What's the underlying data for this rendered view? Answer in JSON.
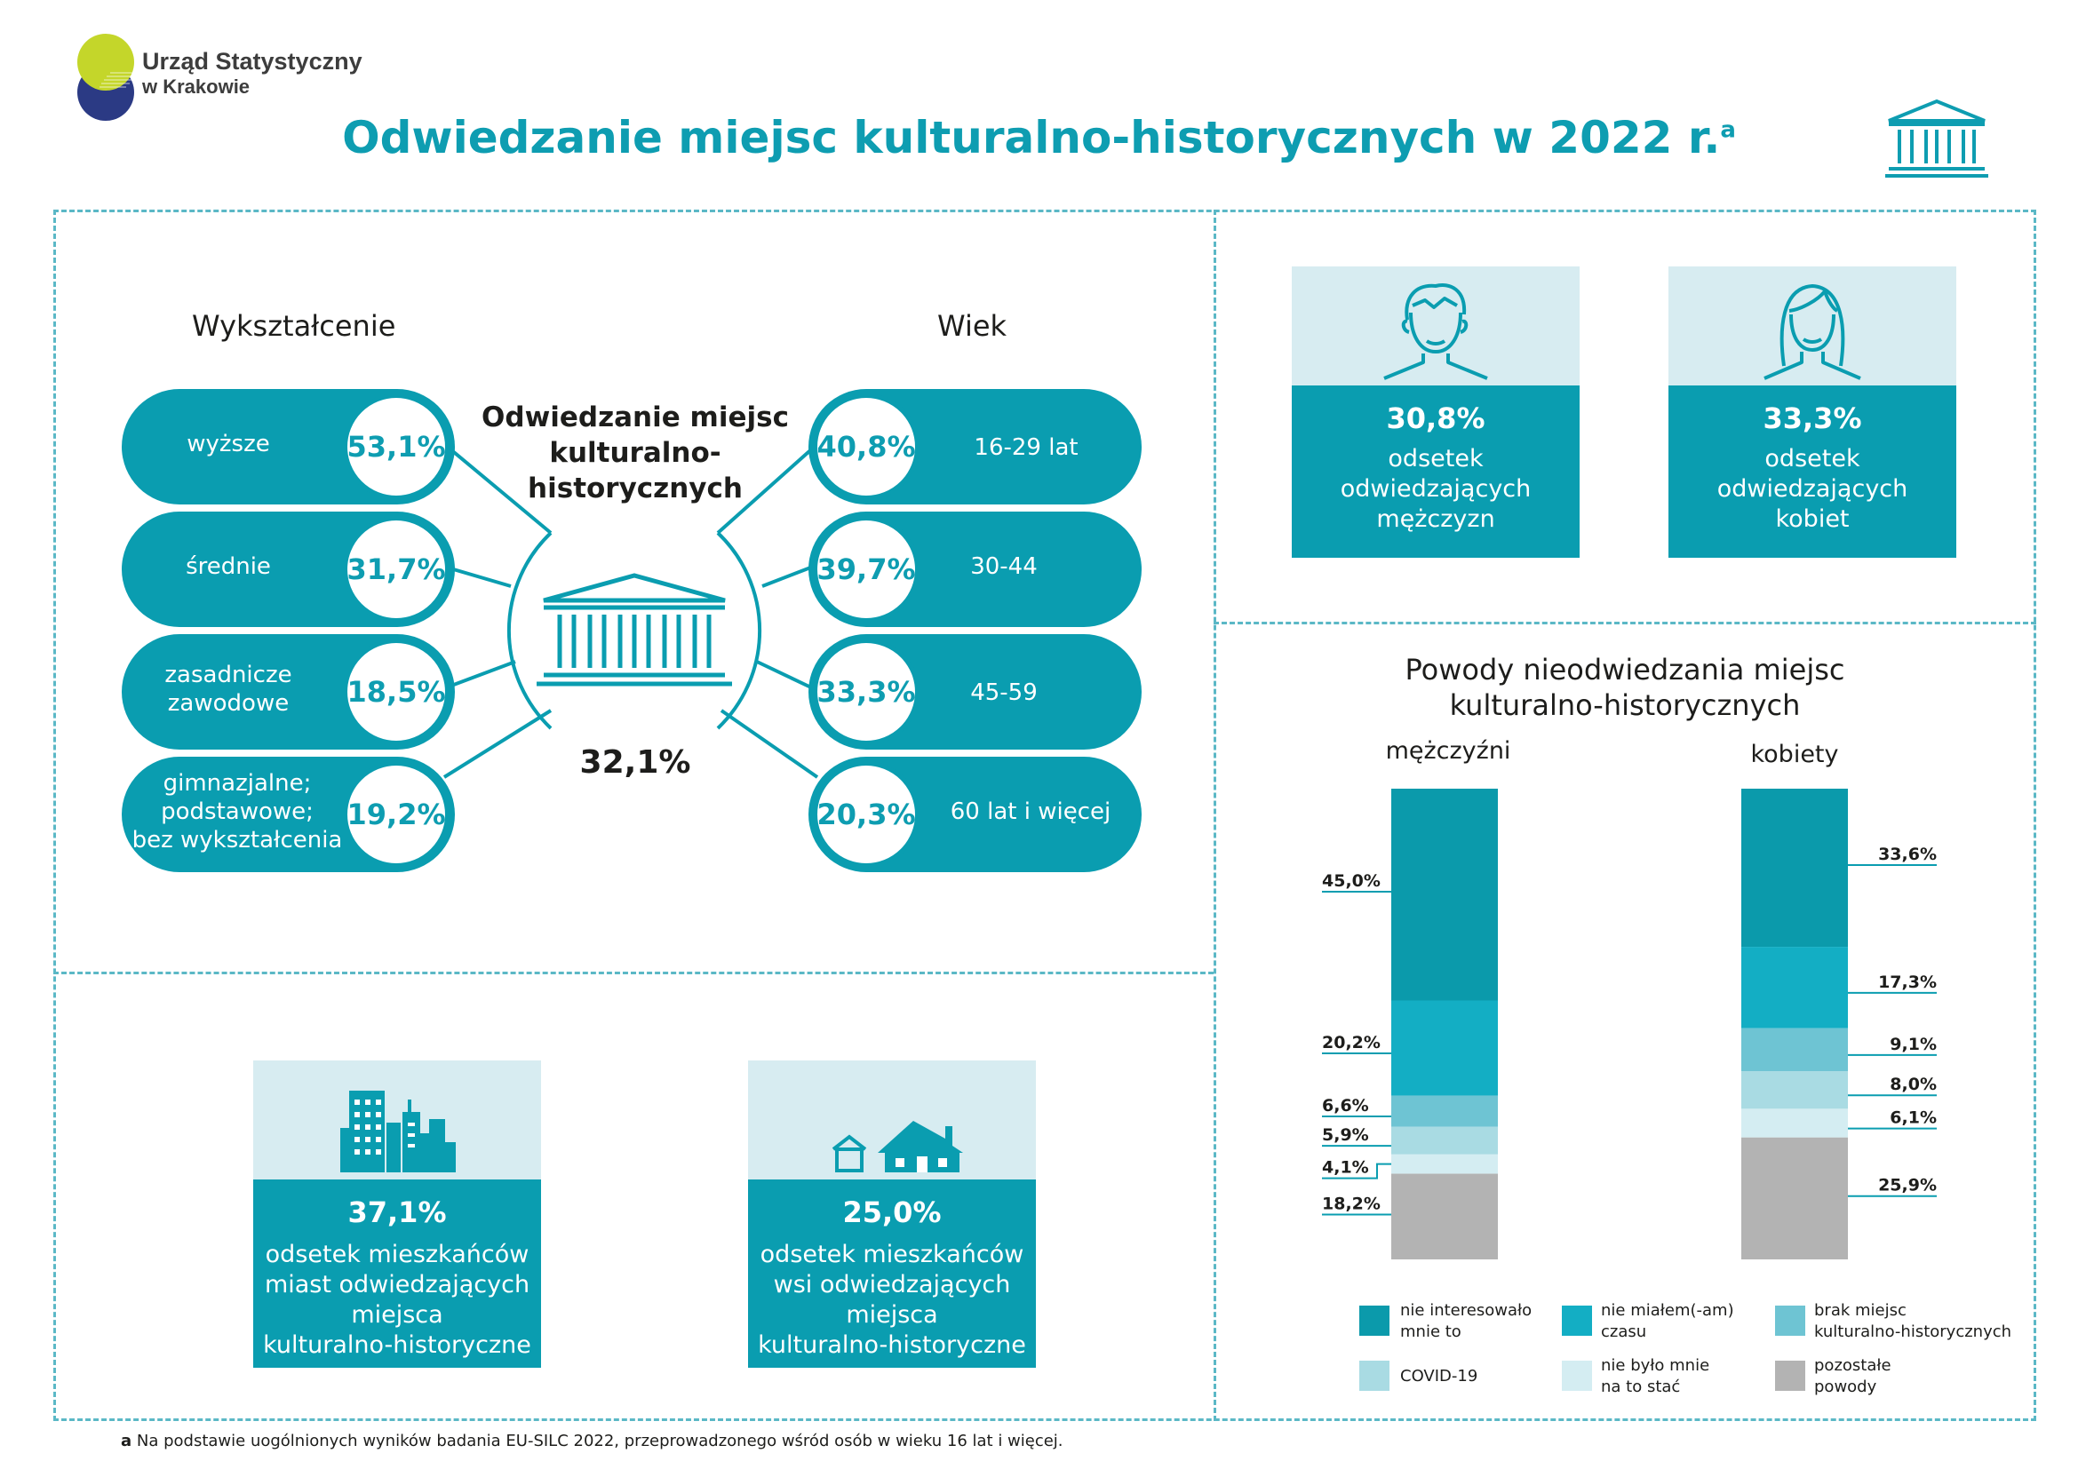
{
  "header": {
    "org_line1": "Urząd Statystyczny",
    "org_line2": "w Krakowie",
    "title": "Odwiedzanie miejsc kulturalno-historycznych w 2022 r.",
    "title_sup": "a"
  },
  "education": {
    "heading": "Wykształcenie",
    "items": [
      {
        "label": "wyższe",
        "value": "53,1%"
      },
      {
        "label": "średnie",
        "value": "31,7%"
      },
      {
        "label": "zasadnicze\nzawodowe",
        "value": "18,5%"
      },
      {
        "label": "gimnazjalne;\npodstawowe;\nbez wykształcenia",
        "value": "19,2%"
      }
    ]
  },
  "age": {
    "heading": "Wiek",
    "items": [
      {
        "label": "16-29 lat",
        "value": "40,8%"
      },
      {
        "label": "30-44",
        "value": "39,7%"
      },
      {
        "label": "45-59",
        "value": "33,3%"
      },
      {
        "label": "60 lat i więcej",
        "value": "20,3%"
      }
    ]
  },
  "center": {
    "title": "Odwiedzanie miejsc\nkulturalno-historycznych",
    "value": "32,1%"
  },
  "gender": {
    "men": {
      "value": "30,8%",
      "desc": "odsetek\nodwiedzających\nmężczyzn"
    },
    "women": {
      "value": "33,3%",
      "desc": "odsetek\nodwiedzających\nkobiet"
    }
  },
  "residence": {
    "city": {
      "value": "37,1%",
      "desc": "odsetek mieszkańców\nmiast odwiedzających\nmiejsca\nkulturalno-historyczne"
    },
    "village": {
      "value": "25,0%",
      "desc": "odsetek mieszkańców\nwsi odwiedzających\nmiejsca\nkulturalno-historyczne"
    }
  },
  "colors": {
    "teal_dark": "#0a9db0",
    "teal_text": "#0e9db1",
    "seg_not_interested": "#0b9aab",
    "seg_no_time": "#13aec4",
    "seg_no_places": "#6ec4d3",
    "seg_covid": "#a9dbe3",
    "seg_cant_afford": "#d4edf2",
    "seg_other": "#b3b3b3",
    "card_light": "#d7ecf1"
  },
  "chart_data": {
    "type": "bar",
    "title": "Powody nieodwiedzania miejsc\nkulturalno-historycznych",
    "stacked": true,
    "categories": [
      "mężczyźni",
      "kobiety"
    ],
    "series": [
      {
        "name": "nie interesowało\nmnie to",
        "values": [
          45.0,
          33.6
        ],
        "labels": [
          "45,0%",
          "33,6%"
        ]
      },
      {
        "name": "nie miałem(-am)\nczasu",
        "values": [
          20.2,
          17.3
        ],
        "labels": [
          "20,2%",
          "17,3%"
        ]
      },
      {
        "name": "brak miejsc\nkulturalno-historycznych",
        "values": [
          6.6,
          9.1
        ],
        "labels": [
          "6,6%",
          "9,1%"
        ]
      },
      {
        "name": "COVID-19",
        "values": [
          5.9,
          8.0
        ],
        "labels": [
          "5,9%",
          "8,0%"
        ]
      },
      {
        "name": "nie było mnie\nna to stać",
        "values": [
          4.1,
          6.1
        ],
        "labels": [
          "4,1%",
          "6,1%"
        ]
      },
      {
        "name": "pozostałe\npowody",
        "values": [
          18.2,
          25.9
        ],
        "labels": [
          "18,2%",
          "25,9%"
        ]
      }
    ],
    "legend": "bottom"
  },
  "footnote": {
    "marker": "a",
    "text": " Na podstawie uogólnionych wyników badania EU-SILC 2022, przeprowadzonego wśród osób w wieku 16 lat i więcej."
  }
}
